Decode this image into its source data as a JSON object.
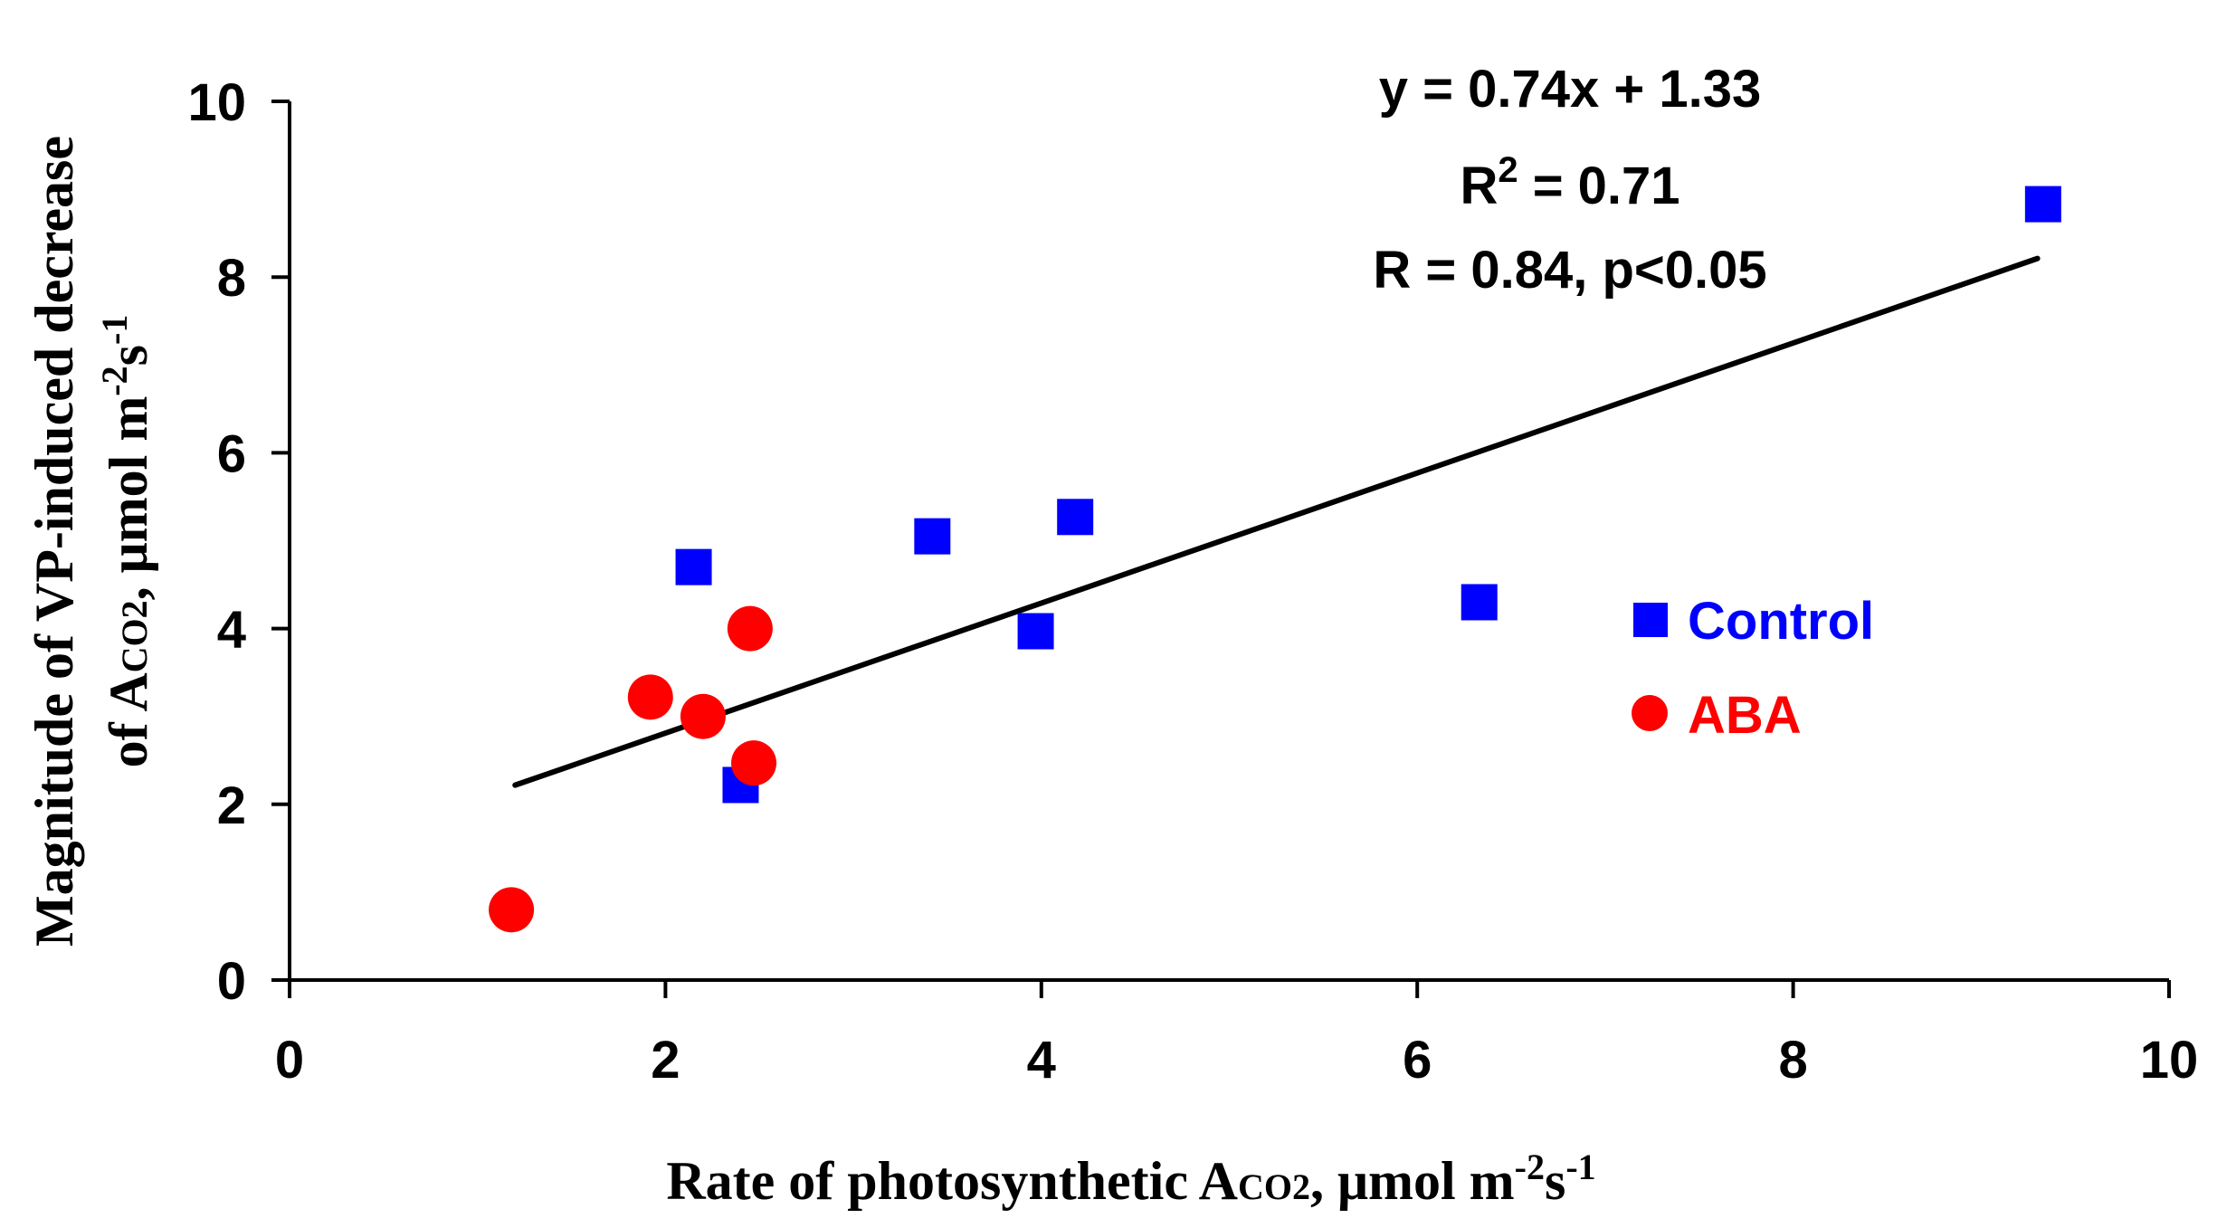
{
  "chart_data": {
    "type": "scatter",
    "xlim": [
      0,
      10
    ],
    "ylim": [
      0,
      10
    ],
    "x_ticks": [
      0,
      2,
      4,
      6,
      8,
      10
    ],
    "y_ticks": [
      0,
      2,
      4,
      6,
      8,
      10
    ],
    "x_tick_labels": [
      "0",
      "2",
      "4",
      "6",
      "8",
      "10"
    ],
    "y_tick_labels": [
      "0",
      "2",
      "4",
      "6",
      "8",
      "10"
    ],
    "xlabel": {
      "prefix": "Rate of photosynthetic A",
      "sub": "CO2",
      "middle": ", μmol m",
      "sup1": "-2",
      "mid2": "s",
      "sup2": "-1"
    },
    "ylabel": {
      "line1": "Magnitude of VP-induced decrease",
      "line2_prefix": "of A",
      "line2_sub": "CO2",
      "line2_middle": ", μmol m",
      "line2_sup1": "-2",
      "line2_mid2": "s",
      "line2_sup2": "-1"
    },
    "series": [
      {
        "name": "Control",
        "marker": "square",
        "color": "#0000ff",
        "x": [
          2.15,
          2.4,
          3.42,
          3.97,
          4.18,
          6.33,
          9.33
        ],
        "y": [
          4.7,
          2.22,
          5.05,
          3.97,
          5.27,
          4.3,
          8.83
        ]
      },
      {
        "name": "ABA",
        "marker": "circle",
        "color": "#ff0000",
        "x": [
          1.18,
          1.92,
          2.2,
          2.45,
          2.47
        ],
        "y": [
          0.8,
          3.22,
          3.0,
          4.0,
          2.47
        ]
      }
    ],
    "trendline": {
      "x_start": 1.2,
      "x_end": 9.3,
      "slope": 0.74,
      "intercept": 1.33,
      "color": "#000000"
    },
    "annotations": {
      "equation": "y = 0.74x + 1.33",
      "r2_prefix": "R",
      "r2_sup": "2",
      "r2_value": " = 0.71",
      "r_line": "R = 0.84, p<0.05"
    },
    "legend": {
      "placement": "right",
      "entries": [
        {
          "label": "Control",
          "color": "#0000ff",
          "marker": "square"
        },
        {
          "label": "ABA",
          "color": "#ff0000",
          "marker": "circle"
        }
      ]
    }
  }
}
